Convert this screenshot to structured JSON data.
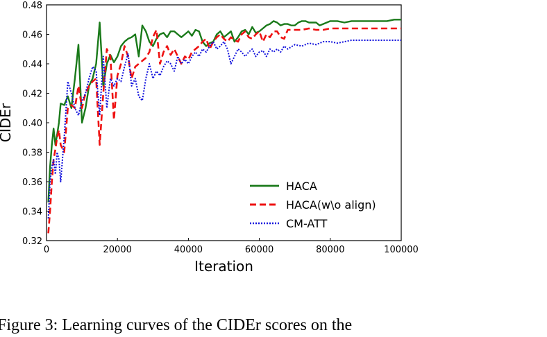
{
  "caption": "Figure 3: Learning curves of the CIDEr scores on the",
  "chart_data": {
    "type": "line",
    "title": "",
    "xlabel": "Iteration",
    "ylabel": "CIDEr",
    "xlim": [
      0,
      100000
    ],
    "ylim": [
      0.32,
      0.48
    ],
    "xticks": [
      0,
      20000,
      40000,
      60000,
      80000,
      100000
    ],
    "yticks": [
      0.32,
      0.34,
      0.36,
      0.38,
      0.4,
      0.42,
      0.44,
      0.46,
      0.48
    ],
    "grid": false,
    "legend_position": "lower-right",
    "series": [
      {
        "name": "HACA",
        "color": "#1a7a1a",
        "dash": "solid",
        "points": [
          [
            500,
            0.346
          ],
          [
            1000,
            0.37
          ],
          [
            1500,
            0.385
          ],
          [
            2000,
            0.396
          ],
          [
            2500,
            0.385
          ],
          [
            3000,
            0.392
          ],
          [
            3500,
            0.4
          ],
          [
            4000,
            0.413
          ],
          [
            5000,
            0.412
          ],
          [
            6000,
            0.418
          ],
          [
            7000,
            0.41
          ],
          [
            8000,
            0.43
          ],
          [
            9000,
            0.453
          ],
          [
            10000,
            0.4
          ],
          [
            11000,
            0.41
          ],
          [
            12000,
            0.425
          ],
          [
            13000,
            0.43
          ],
          [
            14000,
            0.44
          ],
          [
            15000,
            0.468
          ],
          [
            16000,
            0.425
          ],
          [
            17000,
            0.44
          ],
          [
            18000,
            0.446
          ],
          [
            19000,
            0.441
          ],
          [
            20000,
            0.445
          ],
          [
            21000,
            0.452
          ],
          [
            22000,
            0.455
          ],
          [
            23000,
            0.457
          ],
          [
            24000,
            0.458
          ],
          [
            25000,
            0.46
          ],
          [
            26000,
            0.445
          ],
          [
            27000,
            0.466
          ],
          [
            28000,
            0.462
          ],
          [
            29000,
            0.455
          ],
          [
            30000,
            0.452
          ],
          [
            31000,
            0.457
          ],
          [
            32000,
            0.46
          ],
          [
            33000,
            0.461
          ],
          [
            34000,
            0.458
          ],
          [
            35000,
            0.462
          ],
          [
            36000,
            0.462
          ],
          [
            37000,
            0.46
          ],
          [
            38000,
            0.458
          ],
          [
            39000,
            0.46
          ],
          [
            40000,
            0.462
          ],
          [
            41000,
            0.459
          ],
          [
            42000,
            0.463
          ],
          [
            43000,
            0.462
          ],
          [
            44000,
            0.455
          ],
          [
            45000,
            0.452
          ],
          [
            46000,
            0.454
          ],
          [
            47000,
            0.455
          ],
          [
            48000,
            0.46
          ],
          [
            49000,
            0.462
          ],
          [
            50000,
            0.458
          ],
          [
            51000,
            0.46
          ],
          [
            52000,
            0.462
          ],
          [
            53000,
            0.455
          ],
          [
            54000,
            0.458
          ],
          [
            55000,
            0.462
          ],
          [
            56000,
            0.463
          ],
          [
            57000,
            0.46
          ],
          [
            58000,
            0.465
          ],
          [
            59000,
            0.461
          ],
          [
            60000,
            0.462
          ],
          [
            61000,
            0.464
          ],
          [
            62000,
            0.466
          ],
          [
            63000,
            0.467
          ],
          [
            64000,
            0.469
          ],
          [
            65000,
            0.468
          ],
          [
            66000,
            0.466
          ],
          [
            67000,
            0.467
          ],
          [
            68000,
            0.467
          ],
          [
            69000,
            0.466
          ],
          [
            70000,
            0.466
          ],
          [
            71000,
            0.468
          ],
          [
            72000,
            0.469
          ],
          [
            73000,
            0.469
          ],
          [
            74000,
            0.468
          ],
          [
            75000,
            0.468
          ],
          [
            76000,
            0.468
          ],
          [
            77000,
            0.466
          ],
          [
            78000,
            0.467
          ],
          [
            80000,
            0.469
          ],
          [
            82000,
            0.469
          ],
          [
            84000,
            0.468
          ],
          [
            86000,
            0.469
          ],
          [
            88000,
            0.469
          ],
          [
            90000,
            0.469
          ],
          [
            92000,
            0.469
          ],
          [
            94000,
            0.469
          ],
          [
            96000,
            0.469
          ],
          [
            98000,
            0.47
          ],
          [
            100000,
            0.47
          ]
        ]
      },
      {
        "name": "HACA(w\\o align)",
        "color": "#ee1111",
        "dash": "dashed",
        "points": [
          [
            500,
            0.325
          ],
          [
            1000,
            0.34
          ],
          [
            1500,
            0.36
          ],
          [
            2000,
            0.375
          ],
          [
            2500,
            0.382
          ],
          [
            3000,
            0.39
          ],
          [
            3500,
            0.395
          ],
          [
            4000,
            0.385
          ],
          [
            5000,
            0.38
          ],
          [
            6000,
            0.41
          ],
          [
            7000,
            0.412
          ],
          [
            8000,
            0.41
          ],
          [
            9000,
            0.425
          ],
          [
            10000,
            0.41
          ],
          [
            11000,
            0.42
          ],
          [
            12000,
            0.425
          ],
          [
            13000,
            0.428
          ],
          [
            14000,
            0.43
          ],
          [
            15000,
            0.385
          ],
          [
            16000,
            0.42
          ],
          [
            17000,
            0.45
          ],
          [
            18000,
            0.445
          ],
          [
            19000,
            0.402
          ],
          [
            20000,
            0.432
          ],
          [
            21000,
            0.44
          ],
          [
            22000,
            0.452
          ],
          [
            23000,
            0.445
          ],
          [
            24000,
            0.43
          ],
          [
            25000,
            0.438
          ],
          [
            26000,
            0.44
          ],
          [
            27000,
            0.442
          ],
          [
            28000,
            0.444
          ],
          [
            29000,
            0.448
          ],
          [
            30000,
            0.458
          ],
          [
            31000,
            0.463
          ],
          [
            32000,
            0.44
          ],
          [
            33000,
            0.448
          ],
          [
            34000,
            0.452
          ],
          [
            35000,
            0.446
          ],
          [
            36000,
            0.45
          ],
          [
            37000,
            0.445
          ],
          [
            38000,
            0.44
          ],
          [
            39000,
            0.445
          ],
          [
            40000,
            0.443
          ],
          [
            41000,
            0.448
          ],
          [
            42000,
            0.45
          ],
          [
            43000,
            0.452
          ],
          [
            44000,
            0.455
          ],
          [
            45000,
            0.457
          ],
          [
            46000,
            0.45
          ],
          [
            47000,
            0.455
          ],
          [
            48000,
            0.458
          ],
          [
            49000,
            0.46
          ],
          [
            50000,
            0.457
          ],
          [
            51000,
            0.455
          ],
          [
            52000,
            0.458
          ],
          [
            53000,
            0.456
          ],
          [
            54000,
            0.455
          ],
          [
            55000,
            0.46
          ],
          [
            56000,
            0.462
          ],
          [
            57000,
            0.458
          ],
          [
            58000,
            0.457
          ],
          [
            59000,
            0.46
          ],
          [
            60000,
            0.462
          ],
          [
            61000,
            0.455
          ],
          [
            62000,
            0.46
          ],
          [
            63000,
            0.458
          ],
          [
            64000,
            0.462
          ],
          [
            65000,
            0.462
          ],
          [
            66000,
            0.458
          ],
          [
            67000,
            0.457
          ],
          [
            68000,
            0.463
          ],
          [
            70000,
            0.463
          ],
          [
            72000,
            0.463
          ],
          [
            74000,
            0.464
          ],
          [
            76000,
            0.463
          ],
          [
            78000,
            0.463
          ],
          [
            80000,
            0.464
          ],
          [
            82000,
            0.464
          ],
          [
            84000,
            0.464
          ],
          [
            86000,
            0.464
          ],
          [
            88000,
            0.464
          ],
          [
            90000,
            0.464
          ],
          [
            92000,
            0.464
          ],
          [
            94000,
            0.464
          ],
          [
            96000,
            0.464
          ],
          [
            98000,
            0.464
          ],
          [
            100000,
            0.464
          ]
        ]
      },
      {
        "name": "CM-ATT",
        "color": "#1111dd",
        "dash": "dotted",
        "points": [
          [
            500,
            0.335
          ],
          [
            1000,
            0.36
          ],
          [
            1500,
            0.37
          ],
          [
            2000,
            0.375
          ],
          [
            2500,
            0.365
          ],
          [
            3000,
            0.38
          ],
          [
            3500,
            0.375
          ],
          [
            4000,
            0.36
          ],
          [
            5000,
            0.39
          ],
          [
            6000,
            0.428
          ],
          [
            7000,
            0.42
          ],
          [
            8000,
            0.41
          ],
          [
            9000,
            0.405
          ],
          [
            10000,
            0.415
          ],
          [
            11000,
            0.42
          ],
          [
            12000,
            0.43
          ],
          [
            13000,
            0.438
          ],
          [
            14000,
            0.435
          ],
          [
            15000,
            0.405
          ],
          [
            16000,
            0.445
          ],
          [
            17000,
            0.41
          ],
          [
            18000,
            0.43
          ],
          [
            19000,
            0.425
          ],
          [
            20000,
            0.43
          ],
          [
            21000,
            0.428
          ],
          [
            22000,
            0.438
          ],
          [
            23000,
            0.447
          ],
          [
            24000,
            0.425
          ],
          [
            25000,
            0.43
          ],
          [
            26000,
            0.418
          ],
          [
            27000,
            0.415
          ],
          [
            28000,
            0.43
          ],
          [
            29000,
            0.44
          ],
          [
            30000,
            0.43
          ],
          [
            31000,
            0.435
          ],
          [
            32000,
            0.432
          ],
          [
            33000,
            0.438
          ],
          [
            34000,
            0.442
          ],
          [
            35000,
            0.44
          ],
          [
            36000,
            0.435
          ],
          [
            37000,
            0.445
          ],
          [
            38000,
            0.44
          ],
          [
            39000,
            0.443
          ],
          [
            40000,
            0.44
          ],
          [
            41000,
            0.445
          ],
          [
            42000,
            0.448
          ],
          [
            43000,
            0.445
          ],
          [
            44000,
            0.45
          ],
          [
            45000,
            0.448
          ],
          [
            46000,
            0.452
          ],
          [
            47000,
            0.455
          ],
          [
            48000,
            0.45
          ],
          [
            49000,
            0.452
          ],
          [
            50000,
            0.455
          ],
          [
            51000,
            0.45
          ],
          [
            52000,
            0.44
          ],
          [
            53000,
            0.445
          ],
          [
            54000,
            0.45
          ],
          [
            55000,
            0.448
          ],
          [
            56000,
            0.445
          ],
          [
            57000,
            0.448
          ],
          [
            58000,
            0.45
          ],
          [
            59000,
            0.445
          ],
          [
            60000,
            0.448
          ],
          [
            61000,
            0.449
          ],
          [
            62000,
            0.445
          ],
          [
            63000,
            0.45
          ],
          [
            64000,
            0.448
          ],
          [
            65000,
            0.45
          ],
          [
            66000,
            0.448
          ],
          [
            67000,
            0.452
          ],
          [
            68000,
            0.45
          ],
          [
            70000,
            0.453
          ],
          [
            72000,
            0.452
          ],
          [
            74000,
            0.454
          ],
          [
            76000,
            0.453
          ],
          [
            78000,
            0.455
          ],
          [
            80000,
            0.455
          ],
          [
            82000,
            0.454
          ],
          [
            84000,
            0.455
          ],
          [
            86000,
            0.456
          ],
          [
            88000,
            0.456
          ],
          [
            90000,
            0.456
          ],
          [
            92000,
            0.456
          ],
          [
            94000,
            0.456
          ],
          [
            96000,
            0.456
          ],
          [
            98000,
            0.456
          ],
          [
            100000,
            0.456
          ]
        ]
      }
    ]
  }
}
